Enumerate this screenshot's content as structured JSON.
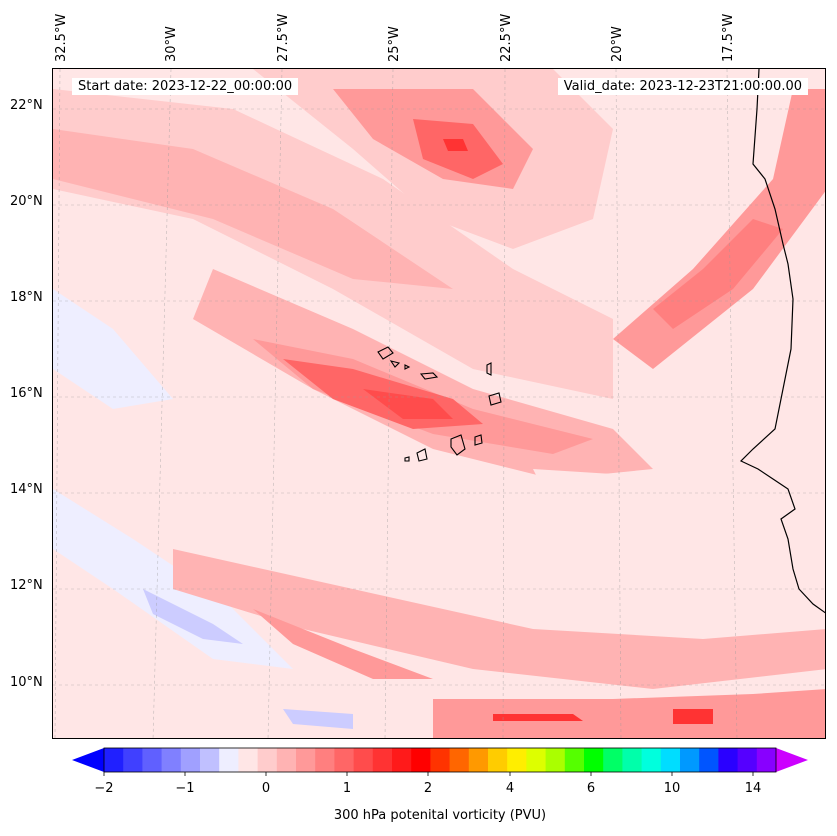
{
  "map": {
    "start_date": "Start date: 2023-12-22_00:00:00",
    "valid_date": "Valid_date: 2023-12-23T21:00:00.00",
    "lon_labels": [
      "32.5°W",
      "30°W",
      "27.5°W",
      "25°W",
      "22.5°W",
      "20°W",
      "17.5°W"
    ],
    "lat_labels": [
      "22°N",
      "20°N",
      "18°N",
      "16°N",
      "14°N",
      "12°N",
      "10°N"
    ],
    "colors": {
      "pale_pink": "#ffe6e6",
      "light_pink": "#ffcccc",
      "pink": "#ffb3b3",
      "salmon": "#ff9999",
      "light_red": "#ff7f7f",
      "red": "#ff6666",
      "strong_red": "#ff3333",
      "pale_blue": "#eeeeff",
      "light_blue": "#ccccff",
      "coastline": "#000000"
    }
  },
  "colorbar": {
    "title": "300 hPa potenital vorticity (PVU)",
    "tick_labels": [
      "−2",
      "−1",
      "0",
      "1",
      "2",
      "4",
      "6",
      "10",
      "14"
    ],
    "colors": [
      "#2020ff",
      "#4040ff",
      "#6060ff",
      "#8080ff",
      "#a0a0ff",
      "#c0c0ff",
      "#eeeeff",
      "#ffe6e6",
      "#ffcccc",
      "#ffb3b3",
      "#ff9999",
      "#ff7f7f",
      "#ff6666",
      "#ff4c4c",
      "#ff3333",
      "#ff1a1a",
      "#ff0000",
      "#ff3300",
      "#ff6600",
      "#ff9900",
      "#ffcc00",
      "#ffee00",
      "#ddff00",
      "#aaff00",
      "#55ff00",
      "#00ff00",
      "#00ff66",
      "#00ffaa",
      "#00ffdd",
      "#00ddff",
      "#0099ff",
      "#0055ff",
      "#2a00ff",
      "#5500ff",
      "#8800ff"
    ],
    "under_color": "#0000ff",
    "over_color": "#cc00ff"
  }
}
